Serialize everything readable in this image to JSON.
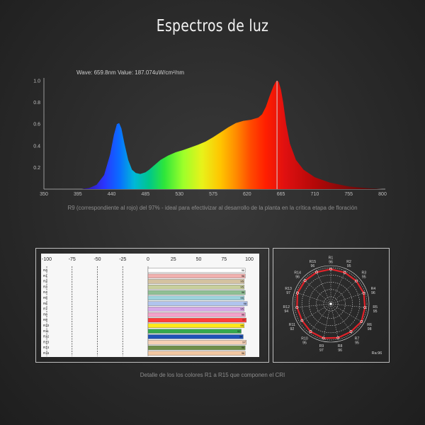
{
  "title": "Espectros de luz",
  "spectrum": {
    "readout": "Wave: 659.8nm Value: 187.074uW/cm²/nm",
    "caption": "R9 (correspondiente al rojo) del 97% - ideal para efectivizar al desarrollo de la planta en la crítica etapa de floración"
  },
  "cri_caption": "Detalle de los los colores R1 a R15 que componen el CRI",
  "chart_data": [
    {
      "type": "area",
      "title": "",
      "xlabel": "",
      "ylabel": "",
      "xlim": [
        350,
        800
      ],
      "ylim": [
        0,
        1.0
      ],
      "x_ticks": [
        "350",
        "395",
        "440",
        "485",
        "530",
        "575",
        "620",
        "665",
        "710",
        "755",
        "800"
      ],
      "y_ticks": [
        "0.2",
        "0.4",
        "0.6",
        "0.8",
        "1.0"
      ],
      "cursor_x": 659.8,
      "series": [
        {
          "x": [
            400,
            410,
            420,
            430,
            438,
            443,
            447,
            450,
            453,
            457,
            462,
            467,
            472,
            478,
            485,
            490,
            495,
            505,
            515,
            525,
            535,
            545,
            555,
            565,
            575,
            585,
            595,
            605,
            615,
            625,
            635,
            640,
            645,
            650,
            655,
            658,
            660,
            662,
            665,
            668,
            672,
            677,
            685,
            695,
            710,
            730,
            755,
            780,
            800
          ],
          "y": [
            0.0,
            0.01,
            0.04,
            0.13,
            0.32,
            0.5,
            0.6,
            0.61,
            0.56,
            0.42,
            0.27,
            0.18,
            0.15,
            0.14,
            0.155,
            0.18,
            0.21,
            0.27,
            0.31,
            0.34,
            0.36,
            0.385,
            0.41,
            0.44,
            0.48,
            0.525,
            0.57,
            0.61,
            0.63,
            0.64,
            0.66,
            0.69,
            0.76,
            0.86,
            0.95,
            0.99,
            1.0,
            0.99,
            0.92,
            0.8,
            0.6,
            0.42,
            0.27,
            0.18,
            0.11,
            0.06,
            0.025,
            0.008,
            0.0
          ]
        }
      ]
    },
    {
      "type": "bar",
      "title": "",
      "orientation": "horizontal",
      "xlim": [
        -100,
        100
      ],
      "x_ticks": [
        "-100",
        "-75",
        "-50",
        "-25",
        "0",
        "25",
        "50",
        "75",
        "100"
      ],
      "categories": [
        "Ra",
        "R1",
        "R2",
        "R3",
        "R4",
        "R5",
        "R6",
        "R7",
        "R8",
        "R9",
        "R10",
        "R11",
        "R12",
        "R13",
        "R14",
        "R15"
      ],
      "values": [
        96,
        96,
        95,
        95,
        96,
        95,
        98,
        95,
        96,
        97,
        95,
        92,
        94,
        97,
        96,
        96
      ],
      "value_labels": [
        "96",
        "96",
        "95",
        "95",
        "96",
        "95",
        "98",
        "95",
        "96",
        "97",
        "95",
        "92",
        "94",
        "97",
        "96",
        "96"
      ],
      "colors": [
        "#ffffff",
        "#f0b0ae",
        "#d4c2a0",
        "#c8cf9c",
        "#8fbf93",
        "#9dd3dc",
        "#b0c4ee",
        "#d7a8e8",
        "#f2a1c9",
        "#ff3b3b",
        "#ffe81a",
        "#36a94f",
        "#1f53b8",
        "#f5d0b6",
        "#6f8f4a",
        "#f2c7a2"
      ],
      "ra_label": "Ra:96"
    },
    {
      "type": "radar",
      "title": "",
      "axes": [
        "R1",
        "R2",
        "R3",
        "R4",
        "R5",
        "R6",
        "R7",
        "R8",
        "R9",
        "R10",
        "R11",
        "R12",
        "R13",
        "R14",
        "R15"
      ],
      "values": [
        96,
        95,
        95,
        96,
        95,
        98,
        95,
        96,
        97,
        95,
        92,
        94,
        97,
        96,
        96
      ],
      "labels": [
        "96",
        "95",
        "95",
        "96",
        "95",
        "98",
        "95",
        "96",
        "97",
        "95",
        "92",
        "94",
        "97",
        "96",
        "96"
      ],
      "rmax": 100,
      "ra_label": "Ra:96"
    }
  ],
  "colors": {
    "radar_line": "#e0232a",
    "axis": "#bdbdbd"
  }
}
